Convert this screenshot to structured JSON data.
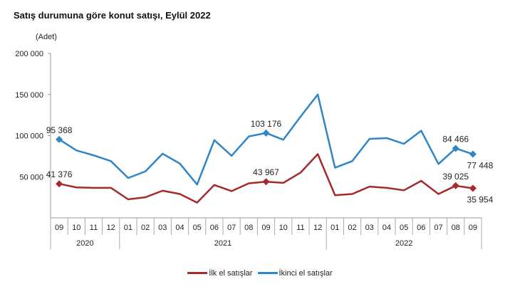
{
  "chart_data": {
    "type": "line",
    "title": "Satış durumuna göre konut satışı, Eylül 2022",
    "ylabel": "(Adet)",
    "ylim": [
      0,
      200000
    ],
    "yticks": [
      "200 000",
      "150 000",
      "100 000",
      "50 000"
    ],
    "ytick_values": [
      200000,
      150000,
      100000,
      50000
    ],
    "categories": [
      "09",
      "10",
      "11",
      "12",
      "01",
      "02",
      "03",
      "04",
      "05",
      "06",
      "07",
      "08",
      "09",
      "10",
      "11",
      "12",
      "01",
      "02",
      "03",
      "04",
      "05",
      "06",
      "07",
      "08",
      "09"
    ],
    "years": [
      {
        "label": "2020",
        "months": 4
      },
      {
        "label": "2021",
        "months": 12
      },
      {
        "label": "2022",
        "months": 9
      }
    ],
    "legend_position": "bottom",
    "grid": false,
    "series": [
      {
        "name": "İlk el satışlar",
        "color": "#a52a2a",
        "values": [
          41376,
          37000,
          36500,
          36500,
          22500,
          25000,
          33000,
          29000,
          18500,
          40000,
          32500,
          42000,
          43967,
          42500,
          55000,
          77500,
          27500,
          29000,
          38000,
          36500,
          33500,
          45000,
          29000,
          39025,
          35954
        ],
        "labels": [
          {
            "index": 0,
            "text": "41 376"
          },
          {
            "index": 12,
            "text": "43 967"
          },
          {
            "index": 23,
            "text": "39 025"
          },
          {
            "index": 24,
            "text": "35 954"
          }
        ]
      },
      {
        "name": "İkinci el satışlar",
        "color": "#2e86c8",
        "values": [
          95368,
          82000,
          76000,
          69000,
          48500,
          56500,
          78000,
          66000,
          40500,
          94500,
          75500,
          99000,
          103176,
          95000,
          123000,
          150000,
          61000,
          69000,
          96000,
          97000,
          90000,
          106000,
          65500,
          84466,
          77448
        ],
        "labels": [
          {
            "index": 0,
            "text": "95 368"
          },
          {
            "index": 12,
            "text": "103 176"
          },
          {
            "index": 23,
            "text": "84 466"
          },
          {
            "index": 24,
            "text": "77 448"
          }
        ]
      }
    ]
  }
}
